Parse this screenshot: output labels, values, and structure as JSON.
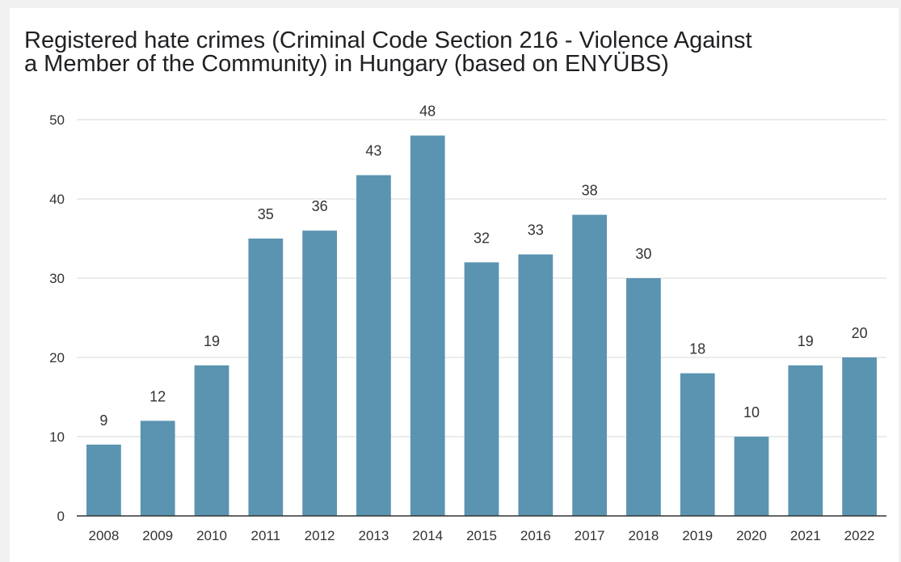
{
  "chart_data": {
    "type": "bar",
    "title_lines": [
      "Registered hate crimes (Criminal Code Section 216 - Violence Against",
      "a Member of the Community) in Hungary (based on ENYÜBS)"
    ],
    "categories": [
      "2008",
      "2009",
      "2010",
      "2011",
      "2012",
      "2013",
      "2014",
      "2015",
      "2016",
      "2017",
      "2018",
      "2019",
      "2020",
      "2021",
      "2022"
    ],
    "values": [
      9,
      12,
      19,
      35,
      36,
      43,
      48,
      32,
      33,
      38,
      30,
      18,
      10,
      19,
      20
    ],
    "ylim": [
      0,
      50
    ],
    "yticks": [
      0,
      10,
      20,
      30,
      40,
      50
    ],
    "xlabel": "",
    "ylabel": "",
    "bar_color": "#5b94b1",
    "grid": true,
    "legend": "none"
  }
}
